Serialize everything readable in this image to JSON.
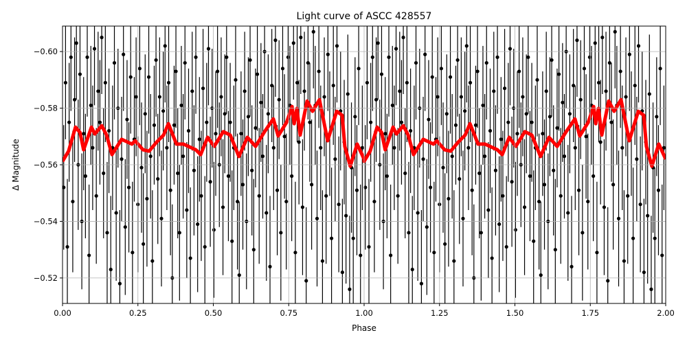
{
  "chart_data": {
    "type": "scatter",
    "title": "Light curve of ASCC 428557",
    "xlabel": "Phase",
    "ylabel": "Δ Magnitude",
    "xlim": [
      0,
      2
    ],
    "ylim": [
      -0.609,
      -0.511
    ],
    "y_inverted": true,
    "grid": true,
    "xticks": [
      "0.00",
      "0.25",
      "0.50",
      "0.75",
      "1.00",
      "1.25",
      "1.50",
      "1.75",
      "2.00"
    ],
    "yticks": [
      "−0.60",
      "−0.58",
      "−0.56",
      "−0.54",
      "−0.52"
    ],
    "xtick_values": [
      0,
      0.25,
      0.5,
      0.75,
      1,
      1.25,
      1.5,
      1.75,
      2
    ],
    "ytick_values": [
      -0.6,
      -0.58,
      -0.56,
      -0.54,
      -0.52
    ],
    "phase_repeat": 1,
    "series": [
      {
        "kind": "errorbar",
        "color": "#000000",
        "points_phase_mag_err": [
          [
            0.004,
            -0.552,
            0.022
          ],
          [
            0.01,
            -0.589,
            0.02
          ],
          [
            0.016,
            -0.531,
            0.024
          ],
          [
            0.022,
            -0.575,
            0.021
          ],
          [
            0.028,
            -0.598,
            0.019
          ],
          [
            0.034,
            -0.547,
            0.025
          ],
          [
            0.04,
            -0.583,
            0.022
          ],
          [
            0.046,
            -0.603,
            0.02
          ],
          [
            0.052,
            -0.56,
            0.023
          ],
          [
            0.058,
            -0.592,
            0.021
          ],
          [
            0.064,
            -0.54,
            0.024
          ],
          [
            0.07,
            -0.571,
            0.02
          ],
          [
            0.076,
            -0.556,
            0.022
          ],
          [
            0.082,
            -0.598,
            0.021
          ],
          [
            0.088,
            -0.528,
            0.025
          ],
          [
            0.094,
            -0.581,
            0.021
          ],
          [
            0.1,
            -0.566,
            0.022
          ],
          [
            0.106,
            -0.601,
            0.02
          ],
          [
            0.112,
            -0.549,
            0.024
          ],
          [
            0.118,
            -0.586,
            0.021
          ],
          [
            0.124,
            -0.575,
            0.022
          ],
          [
            0.13,
            -0.605,
            0.02
          ],
          [
            0.136,
            -0.557,
            0.023
          ],
          [
            0.142,
            -0.589,
            0.021
          ],
          [
            0.148,
            -0.536,
            0.025
          ],
          [
            0.154,
            -0.572,
            0.022
          ],
          [
            0.16,
            -0.523,
            0.026
          ],
          [
            0.166,
            -0.566,
            0.022
          ],
          [
            0.172,
            -0.596,
            0.02
          ],
          [
            0.178,
            -0.543,
            0.024
          ],
          [
            0.184,
            -0.58,
            0.021
          ],
          [
            0.19,
            -0.518,
            0.026
          ],
          [
            0.196,
            -0.562,
            0.022
          ],
          [
            0.202,
            -0.599,
            0.02
          ],
          [
            0.208,
            -0.538,
            0.024
          ],
          [
            0.214,
            -0.576,
            0.021
          ],
          [
            0.22,
            -0.552,
            0.023
          ],
          [
            0.226,
            -0.591,
            0.02
          ],
          [
            0.232,
            -0.529,
            0.025
          ],
          [
            0.238,
            -0.569,
            0.022
          ],
          [
            0.244,
            -0.584,
            0.021
          ],
          [
            0.25,
            -0.546,
            0.024
          ],
          [
            0.256,
            -0.594,
            0.02
          ],
          [
            0.262,
            -0.559,
            0.023
          ],
          [
            0.268,
            -0.532,
            0.025
          ],
          [
            0.274,
            -0.578,
            0.021
          ],
          [
            0.28,
            -0.548,
            0.024
          ],
          [
            0.286,
            -0.591,
            0.02
          ],
          [
            0.292,
            -0.563,
            0.022
          ],
          [
            0.298,
            -0.526,
            0.025
          ],
          [
            0.304,
            -0.574,
            0.021
          ],
          [
            0.31,
            -0.597,
            0.02
          ],
          [
            0.316,
            -0.555,
            0.023
          ],
          [
            0.322,
            -0.584,
            0.021
          ],
          [
            0.328,
            -0.541,
            0.024
          ],
          [
            0.334,
            -0.579,
            0.021
          ],
          [
            0.34,
            -0.602,
            0.02
          ],
          [
            0.346,
            -0.566,
            0.022
          ],
          [
            0.352,
            -0.589,
            0.021
          ],
          [
            0.358,
            -0.551,
            0.023
          ],
          [
            0.364,
            -0.52,
            0.026
          ],
          [
            0.37,
            -0.574,
            0.021
          ],
          [
            0.376,
            -0.593,
            0.02
          ],
          [
            0.382,
            -0.557,
            0.023
          ],
          [
            0.388,
            -0.536,
            0.024
          ],
          [
            0.394,
            -0.581,
            0.021
          ],
          [
            0.4,
            -0.563,
            0.022
          ],
          [
            0.406,
            -0.596,
            0.02
          ],
          [
            0.412,
            -0.544,
            0.024
          ],
          [
            0.418,
            -0.572,
            0.022
          ],
          [
            0.424,
            -0.527,
            0.025
          ],
          [
            0.43,
            -0.586,
            0.021
          ],
          [
            0.436,
            -0.558,
            0.023
          ],
          [
            0.442,
            -0.598,
            0.02
          ],
          [
            0.448,
            -0.539,
            0.024
          ],
          [
            0.454,
            -0.569,
            0.022
          ],
          [
            0.46,
            -0.549,
            0.023
          ],
          [
            0.466,
            -0.587,
            0.021
          ],
          [
            0.472,
            -0.531,
            0.025
          ],
          [
            0.478,
            -0.575,
            0.021
          ],
          [
            0.484,
            -0.601,
            0.02
          ],
          [
            0.49,
            -0.554,
            0.023
          ],
          [
            0.496,
            -0.58,
            0.021
          ],
          [
            0.502,
            -0.537,
            0.024
          ],
          [
            0.508,
            -0.571,
            0.022
          ],
          [
            0.514,
            -0.593,
            0.02
          ],
          [
            0.52,
            -0.56,
            0.022
          ],
          [
            0.526,
            -0.584,
            0.021
          ],
          [
            0.532,
            -0.545,
            0.024
          ],
          [
            0.538,
            -0.578,
            0.021
          ],
          [
            0.544,
            -0.598,
            0.02
          ],
          [
            0.55,
            -0.556,
            0.023
          ],
          [
            0.556,
            -0.575,
            0.021
          ],
          [
            0.562,
            -0.533,
            0.025
          ],
          [
            0.568,
            -0.566,
            0.022
          ],
          [
            0.574,
            -0.59,
            0.02
          ],
          [
            0.58,
            -0.547,
            0.024
          ],
          [
            0.586,
            -0.521,
            0.026
          ],
          [
            0.592,
            -0.571,
            0.022
          ],
          [
            0.598,
            -0.553,
            0.023
          ],
          [
            0.604,
            -0.586,
            0.021
          ],
          [
            0.61,
            -0.54,
            0.024
          ],
          [
            0.616,
            -0.577,
            0.021
          ],
          [
            0.622,
            -0.597,
            0.02
          ],
          [
            0.628,
            -0.558,
            0.023
          ],
          [
            0.634,
            -0.53,
            0.025
          ],
          [
            0.64,
            -0.573,
            0.021
          ],
          [
            0.646,
            -0.592,
            0.02
          ],
          [
            0.652,
            -0.549,
            0.024
          ],
          [
            0.658,
            -0.582,
            0.021
          ],
          [
            0.664,
            -0.563,
            0.022
          ],
          [
            0.67,
            -0.6,
            0.02
          ],
          [
            0.676,
            -0.543,
            0.024
          ],
          [
            0.682,
            -0.578,
            0.021
          ],
          [
            0.688,
            -0.524,
            0.025
          ],
          [
            0.694,
            -0.588,
            0.02
          ],
          [
            0.7,
            -0.566,
            0.022
          ],
          [
            0.706,
            -0.604,
            0.02
          ],
          [
            0.712,
            -0.551,
            0.023
          ],
          [
            0.718,
            -0.583,
            0.021
          ],
          [
            0.724,
            -0.536,
            0.024
          ],
          [
            0.73,
            -0.594,
            0.02
          ],
          [
            0.736,
            -0.57,
            0.022
          ],
          [
            0.742,
            -0.547,
            0.024
          ],
          [
            0.748,
            -0.598,
            0.02
          ],
          [
            0.754,
            -0.581,
            0.021
          ],
          [
            0.76,
            -0.556,
            0.023
          ],
          [
            0.766,
            -0.603,
            0.02
          ],
          [
            0.772,
            -0.529,
            0.025
          ],
          [
            0.778,
            -0.589,
            0.021
          ],
          [
            0.784,
            -0.568,
            0.022
          ],
          [
            0.79,
            -0.605,
            0.02
          ],
          [
            0.796,
            -0.545,
            0.024
          ],
          [
            0.802,
            -0.586,
            0.021
          ],
          [
            0.808,
            -0.519,
            0.026
          ],
          [
            0.814,
            -0.596,
            0.02
          ],
          [
            0.82,
            -0.575,
            0.021
          ],
          [
            0.826,
            -0.553,
            0.023
          ],
          [
            0.832,
            -0.607,
            0.02
          ],
          [
            0.838,
            -0.581,
            0.021
          ],
          [
            0.844,
            -0.541,
            0.024
          ],
          [
            0.85,
            -0.593,
            0.02
          ],
          [
            0.856,
            -0.566,
            0.022
          ],
          [
            0.862,
            -0.526,
            0.025
          ],
          [
            0.868,
            -0.584,
            0.021
          ],
          [
            0.874,
            -0.549,
            0.024
          ],
          [
            0.88,
            -0.599,
            0.02
          ],
          [
            0.886,
            -0.571,
            0.022
          ],
          [
            0.892,
            -0.534,
            0.025
          ],
          [
            0.898,
            -0.588,
            0.021
          ],
          [
            0.904,
            -0.562,
            0.022
          ],
          [
            0.91,
            -0.602,
            0.02
          ],
          [
            0.916,
            -0.546,
            0.024
          ],
          [
            0.922,
            -0.579,
            0.021
          ],
          [
            0.928,
            -0.522,
            0.026
          ],
          [
            0.934,
            -0.568,
            0.022
          ],
          [
            0.94,
            -0.542,
            0.024
          ],
          [
            0.946,
            -0.585,
            0.021
          ],
          [
            0.952,
            -0.516,
            0.026
          ],
          [
            0.958,
            -0.559,
            0.023
          ],
          [
            0.964,
            -0.534,
            0.025
          ],
          [
            0.97,
            -0.577,
            0.021
          ],
          [
            0.976,
            -0.551,
            0.023
          ],
          [
            0.982,
            -0.594,
            0.02
          ],
          [
            0.988,
            -0.528,
            0.025
          ],
          [
            0.994,
            -0.566,
            0.022
          ]
        ]
      },
      {
        "kind": "line",
        "color": "#ff0000",
        "points_phase_mag": [
          [
            0.0,
            -0.5612
          ],
          [
            0.02,
            -0.5648
          ],
          [
            0.043,
            -0.5733
          ],
          [
            0.058,
            -0.5714
          ],
          [
            0.07,
            -0.5653
          ],
          [
            0.096,
            -0.5733
          ],
          [
            0.107,
            -0.5709
          ],
          [
            0.13,
            -0.5738
          ],
          [
            0.146,
            -0.5705
          ],
          [
            0.164,
            -0.5636
          ],
          [
            0.196,
            -0.569
          ],
          [
            0.23,
            -0.5673
          ],
          [
            0.241,
            -0.5685
          ],
          [
            0.267,
            -0.5653
          ],
          [
            0.287,
            -0.5648
          ],
          [
            0.312,
            -0.568
          ],
          [
            0.335,
            -0.5705
          ],
          [
            0.351,
            -0.5745
          ],
          [
            0.378,
            -0.5673
          ],
          [
            0.401,
            -0.5673
          ],
          [
            0.442,
            -0.5653
          ],
          [
            0.458,
            -0.5636
          ],
          [
            0.481,
            -0.5697
          ],
          [
            0.503,
            -0.5665
          ],
          [
            0.533,
            -0.5717
          ],
          [
            0.556,
            -0.5705
          ],
          [
            0.585,
            -0.5629
          ],
          [
            0.613,
            -0.5697
          ],
          [
            0.64,
            -0.5665
          ],
          [
            0.67,
            -0.5717
          ],
          [
            0.699,
            -0.5762
          ],
          [
            0.715,
            -0.5702
          ],
          [
            0.743,
            -0.575
          ],
          [
            0.761,
            -0.5806
          ],
          [
            0.768,
            -0.5745
          ],
          [
            0.777,
            -0.5799
          ],
          [
            0.788,
            -0.5705
          ],
          [
            0.811,
            -0.5825
          ],
          [
            0.829,
            -0.5789
          ],
          [
            0.852,
            -0.583
          ],
          [
            0.879,
            -0.5685
          ],
          [
            0.909,
            -0.5789
          ],
          [
            0.927,
            -0.5775
          ],
          [
            0.936,
            -0.5665
          ],
          [
            0.954,
            -0.5595
          ],
          [
            0.977,
            -0.5673
          ],
          [
            1.0,
            -0.562
          ]
        ]
      }
    ]
  }
}
